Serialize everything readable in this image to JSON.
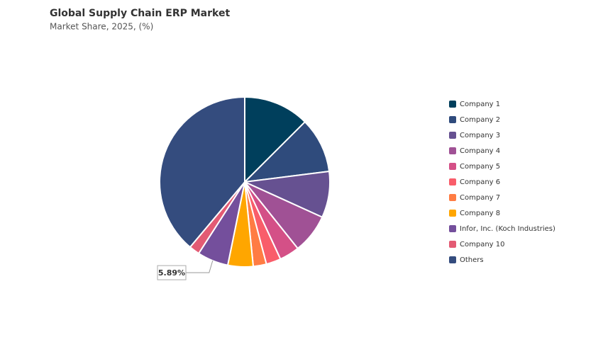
{
  "chart_data": {
    "type": "pie",
    "title": "Global Supply Chain ERP Market",
    "subtitle": "Market Share, 2025, (%)",
    "categories": [
      "Company 1",
      "Company 2",
      "Company 3",
      "Company 4",
      "Company 5",
      "Company 6",
      "Company 7",
      "Company 8",
      "Infor, Inc. (Koch Industries)",
      "Company 10",
      "Others"
    ],
    "values": [
      12.5,
      10.5,
      8.8,
      7.5,
      3.8,
      2.8,
      2.5,
      4.8,
      5.89,
      2.0,
      38.9
    ],
    "value_labels": [
      null,
      null,
      null,
      null,
      null,
      null,
      null,
      null,
      "5.89%",
      null,
      null
    ],
    "colors": [
      "#003f5c",
      "#2f4b7c",
      "#665191",
      "#a05195",
      "#d45087",
      "#f95d6a",
      "#ff7c43",
      "#ffa600",
      "#744f9c",
      "#e35b74",
      "#344c7e"
    ],
    "legend": "right"
  }
}
